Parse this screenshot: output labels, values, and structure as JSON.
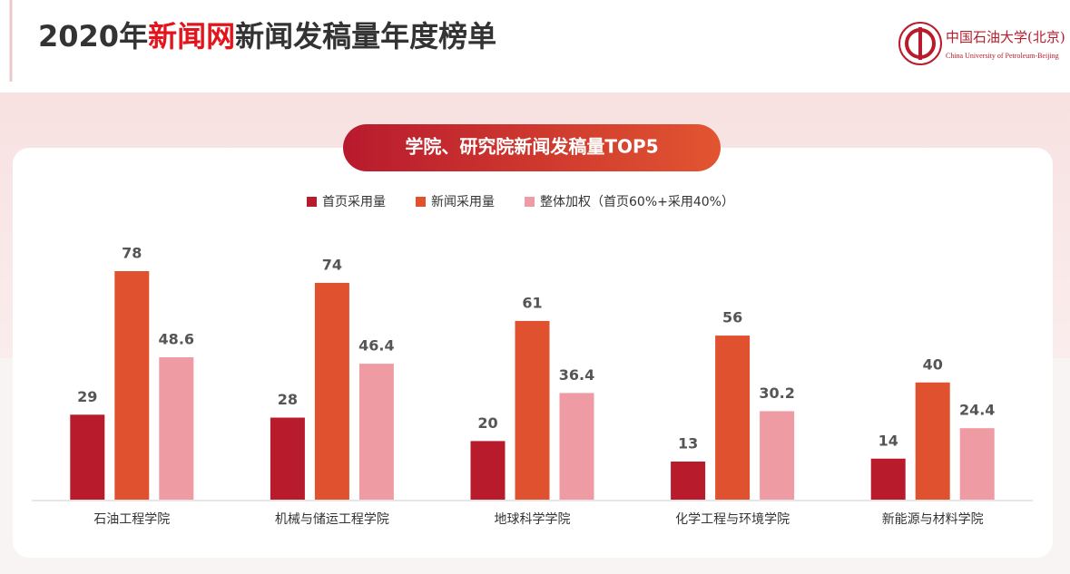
{
  "header": {
    "title_prefix": "2020年",
    "title_highlight": "新闻网",
    "title_suffix": "新闻发稿量年度榜单"
  },
  "logo": {
    "name": "中国石油大学(北京)",
    "english": "China University of Petroleum-Beijing"
  },
  "chart_data": {
    "type": "bar",
    "title": "学院、研究院新闻发稿量TOP5",
    "categories": [
      "石油工程学院",
      "机械与储运工程学院",
      "地球科学学院",
      "化学工程与环境学院",
      "新能源与材料学院"
    ],
    "series": [
      {
        "name": "首页采用量",
        "color": "#b81c2c",
        "values": [
          29,
          28,
          20,
          13,
          14
        ]
      },
      {
        "name": "新闻采用量",
        "color": "#e0512f",
        "values": [
          78,
          74,
          61,
          56,
          40
        ]
      },
      {
        "name": "整体加权（首页60%+采用40%）",
        "color": "#ef9ba3",
        "values": [
          48.6,
          46.4,
          36.4,
          30.2,
          24.4
        ]
      }
    ]
  }
}
